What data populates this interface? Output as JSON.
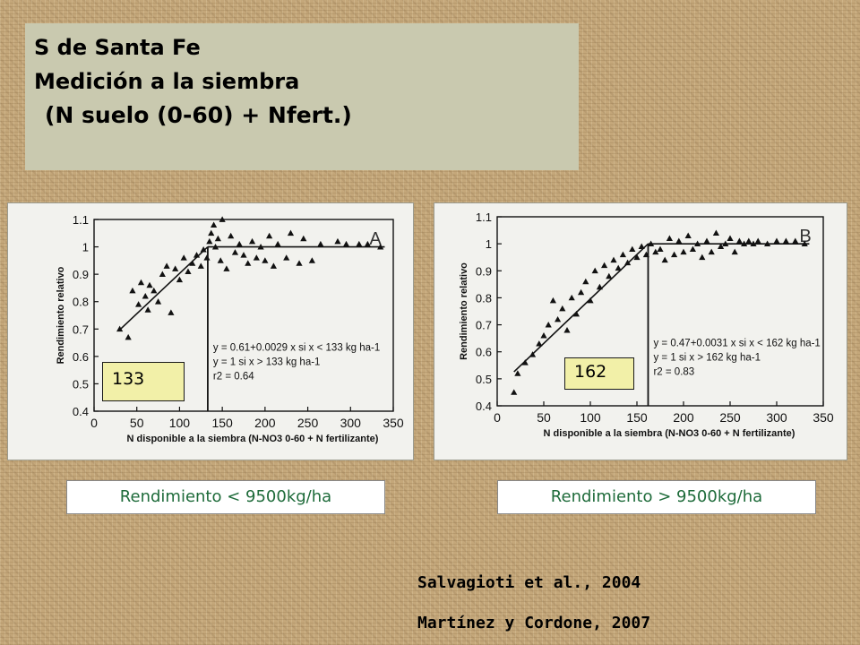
{
  "title": {
    "line1": "S de Santa Fe",
    "line2": "Medición a la siembra",
    "line3": "(N suelo (0-60) + Nfert.)"
  },
  "chart_data": [
    {
      "type": "scatter",
      "panel_letter": "A",
      "xlabel": "N disponible a la siembra (N-NO3 0-60 + N fertilizante)",
      "ylabel": "Rendimiento relativo",
      "xlim": [
        0,
        350
      ],
      "ylim": [
        0.4,
        1.1
      ],
      "xticks": [
        0,
        50,
        100,
        150,
        200,
        250,
        300,
        350
      ],
      "yticks": [
        0.4,
        0.5,
        0.6,
        0.7,
        0.8,
        0.9,
        1,
        1.1
      ],
      "grid": false,
      "equation_lines": [
        "y = 0.61+0.0029 x   si x < 133 kg ha-1",
        "y = 1                  si x > 133 kg ha-1",
        "r2 = 0.64"
      ],
      "fit": {
        "intercept": 0.61,
        "slope": 0.0029,
        "threshold": 133,
        "plateau": 1
      },
      "threshold_label": "133",
      "yield_label": "Rendimiento < 9500kg/ha",
      "points": [
        {
          "x": 30,
          "y": 0.7
        },
        {
          "x": 40,
          "y": 0.67
        },
        {
          "x": 45,
          "y": 0.84
        },
        {
          "x": 52,
          "y": 0.79
        },
        {
          "x": 55,
          "y": 0.87
        },
        {
          "x": 60,
          "y": 0.82
        },
        {
          "x": 63,
          "y": 0.77
        },
        {
          "x": 65,
          "y": 0.86
        },
        {
          "x": 70,
          "y": 0.84
        },
        {
          "x": 75,
          "y": 0.8
        },
        {
          "x": 80,
          "y": 0.9
        },
        {
          "x": 85,
          "y": 0.93
        },
        {
          "x": 90,
          "y": 0.76
        },
        {
          "x": 95,
          "y": 0.92
        },
        {
          "x": 100,
          "y": 0.88
        },
        {
          "x": 105,
          "y": 0.96
        },
        {
          "x": 110,
          "y": 0.91
        },
        {
          "x": 115,
          "y": 0.94
        },
        {
          "x": 120,
          "y": 0.97
        },
        {
          "x": 125,
          "y": 0.93
        },
        {
          "x": 128,
          "y": 0.99
        },
        {
          "x": 132,
          "y": 0.96
        },
        {
          "x": 135,
          "y": 1.02
        },
        {
          "x": 137,
          "y": 1.05
        },
        {
          "x": 140,
          "y": 1.08
        },
        {
          "x": 142,
          "y": 1.0
        },
        {
          "x": 145,
          "y": 1.03
        },
        {
          "x": 148,
          "y": 0.95
        },
        {
          "x": 150,
          "y": 1.1
        },
        {
          "x": 155,
          "y": 0.92
        },
        {
          "x": 160,
          "y": 1.04
        },
        {
          "x": 165,
          "y": 0.98
        },
        {
          "x": 170,
          "y": 1.01
        },
        {
          "x": 175,
          "y": 0.97
        },
        {
          "x": 180,
          "y": 0.94
        },
        {
          "x": 185,
          "y": 1.02
        },
        {
          "x": 190,
          "y": 0.96
        },
        {
          "x": 195,
          "y": 1.0
        },
        {
          "x": 200,
          "y": 0.95
        },
        {
          "x": 205,
          "y": 1.04
        },
        {
          "x": 210,
          "y": 0.93
        },
        {
          "x": 215,
          "y": 1.01
        },
        {
          "x": 225,
          "y": 0.96
        },
        {
          "x": 230,
          "y": 1.05
        },
        {
          "x": 240,
          "y": 0.94
        },
        {
          "x": 245,
          "y": 1.03
        },
        {
          "x": 255,
          "y": 0.95
        },
        {
          "x": 265,
          "y": 1.01
        },
        {
          "x": 285,
          "y": 1.02
        },
        {
          "x": 295,
          "y": 1.01
        },
        {
          "x": 310,
          "y": 1.01
        },
        {
          "x": 320,
          "y": 1.01
        },
        {
          "x": 335,
          "y": 1.0
        }
      ]
    },
    {
      "type": "scatter",
      "panel_letter": "B",
      "xlabel": "N disponible a la siembra (N-NO3 0-60 + N fertilizante)",
      "ylabel": "Rendimiento relativo",
      "xlim": [
        0,
        350
      ],
      "ylim": [
        0.4,
        1.1
      ],
      "xticks": [
        0,
        50,
        100,
        150,
        200,
        250,
        300,
        350
      ],
      "yticks": [
        0.4,
        0.5,
        0.6,
        0.7,
        0.8,
        0.9,
        1,
        1.1
      ],
      "grid": false,
      "equation_lines": [
        "y = 0.47+0.0031 x   si x < 162 kg ha-1",
        "y = 1                  si x > 162 kg ha-1",
        "r2 = 0.83"
      ],
      "fit": {
        "intercept": 0.47,
        "slope": 0.0031,
        "threshold": 162,
        "plateau": 1
      },
      "threshold_label": "162",
      "yield_label": "Rendimiento > 9500kg/ha",
      "points": [
        {
          "x": 18,
          "y": 0.45
        },
        {
          "x": 22,
          "y": 0.52
        },
        {
          "x": 30,
          "y": 0.56
        },
        {
          "x": 38,
          "y": 0.59
        },
        {
          "x": 45,
          "y": 0.63
        },
        {
          "x": 50,
          "y": 0.66
        },
        {
          "x": 55,
          "y": 0.7
        },
        {
          "x": 60,
          "y": 0.79
        },
        {
          "x": 65,
          "y": 0.72
        },
        {
          "x": 70,
          "y": 0.76
        },
        {
          "x": 75,
          "y": 0.68
        },
        {
          "x": 80,
          "y": 0.8
        },
        {
          "x": 85,
          "y": 0.74
        },
        {
          "x": 90,
          "y": 0.82
        },
        {
          "x": 95,
          "y": 0.86
        },
        {
          "x": 100,
          "y": 0.79
        },
        {
          "x": 105,
          "y": 0.9
        },
        {
          "x": 110,
          "y": 0.84
        },
        {
          "x": 115,
          "y": 0.92
        },
        {
          "x": 120,
          "y": 0.88
        },
        {
          "x": 125,
          "y": 0.94
        },
        {
          "x": 130,
          "y": 0.91
        },
        {
          "x": 135,
          "y": 0.96
        },
        {
          "x": 140,
          "y": 0.93
        },
        {
          "x": 145,
          "y": 0.98
        },
        {
          "x": 150,
          "y": 0.95
        },
        {
          "x": 155,
          "y": 0.99
        },
        {
          "x": 160,
          "y": 0.96
        },
        {
          "x": 165,
          "y": 1.0
        },
        {
          "x": 170,
          "y": 0.97
        },
        {
          "x": 175,
          "y": 0.98
        },
        {
          "x": 180,
          "y": 0.94
        },
        {
          "x": 185,
          "y": 1.02
        },
        {
          "x": 190,
          "y": 0.96
        },
        {
          "x": 195,
          "y": 1.01
        },
        {
          "x": 200,
          "y": 0.97
        },
        {
          "x": 205,
          "y": 1.03
        },
        {
          "x": 210,
          "y": 0.98
        },
        {
          "x": 215,
          "y": 1.0
        },
        {
          "x": 220,
          "y": 0.95
        },
        {
          "x": 225,
          "y": 1.01
        },
        {
          "x": 230,
          "y": 0.97
        },
        {
          "x": 235,
          "y": 1.04
        },
        {
          "x": 240,
          "y": 0.99
        },
        {
          "x": 245,
          "y": 1.0
        },
        {
          "x": 250,
          "y": 1.02
        },
        {
          "x": 255,
          "y": 0.97
        },
        {
          "x": 260,
          "y": 1.01
        },
        {
          "x": 265,
          "y": 1.0
        },
        {
          "x": 270,
          "y": 1.01
        },
        {
          "x": 275,
          "y": 1.0
        },
        {
          "x": 280,
          "y": 1.01
        },
        {
          "x": 290,
          "y": 1.0
        },
        {
          "x": 300,
          "y": 1.01
        },
        {
          "x": 310,
          "y": 1.01
        },
        {
          "x": 320,
          "y": 1.01
        },
        {
          "x": 330,
          "y": 1.0
        }
      ]
    }
  ],
  "citations": {
    "line1": "Salvagioti et al., 2004",
    "line2": "Martínez y Cordone, 2007"
  },
  "colors": {
    "background": "#c4a77a",
    "title_box": "#c9c9af",
    "threshold_box": "#f2f0a8",
    "yield_text": "#1e6b3a"
  }
}
